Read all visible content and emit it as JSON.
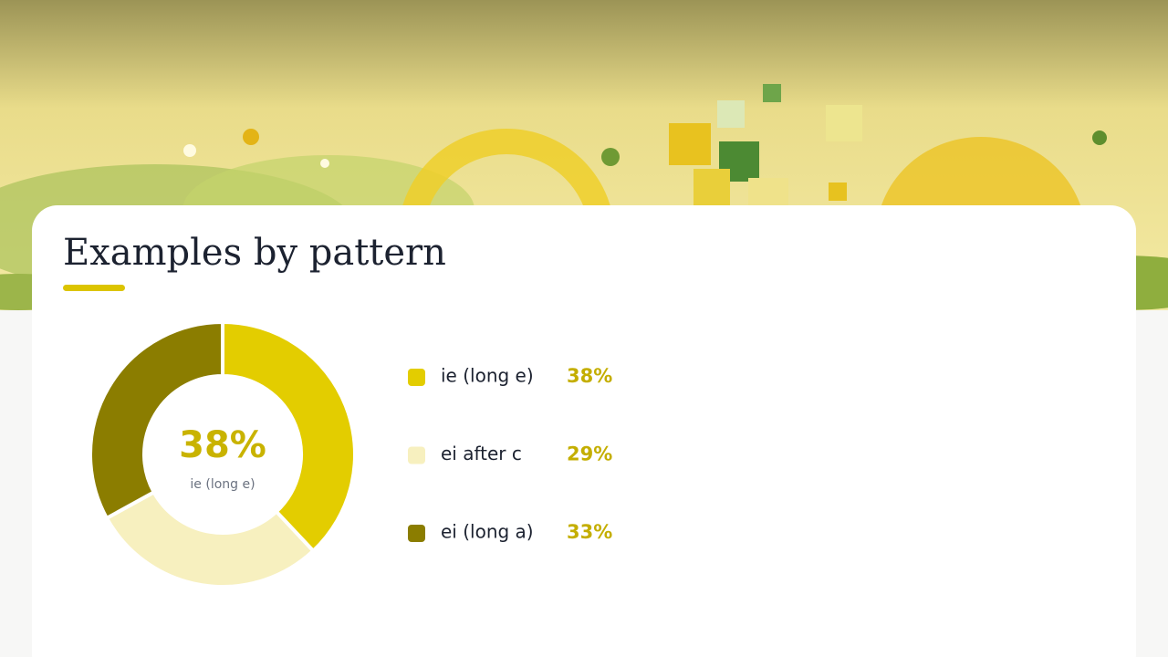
{
  "chart_data": {
    "type": "donut",
    "title": "Examples by pattern",
    "categories": [
      "ie (long e)",
      "ei after c",
      "ei (long a)"
    ],
    "values": [
      38,
      29,
      33
    ],
    "value_labels": [
      "38%",
      "29%",
      "33%"
    ],
    "colors": [
      "#e3cd00",
      "#f7f0bf",
      "#8b7d00"
    ]
  }
}
